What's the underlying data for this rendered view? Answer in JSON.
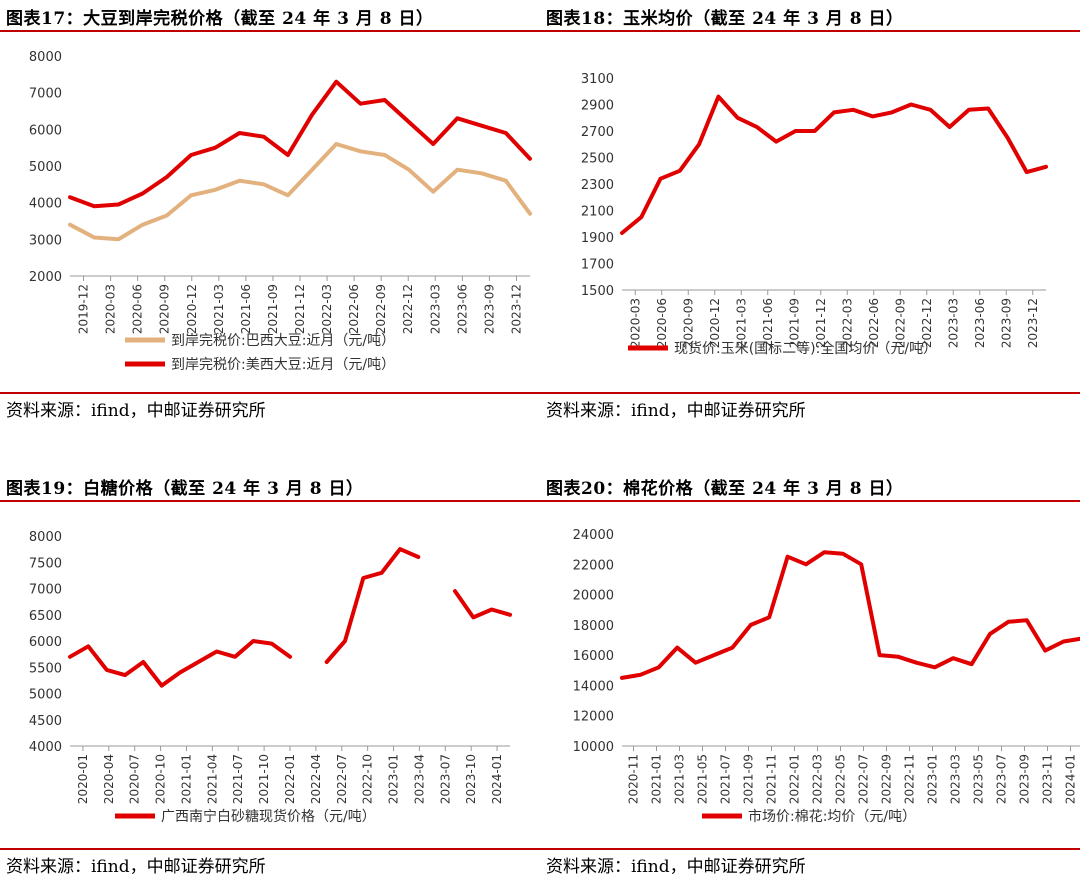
{
  "panels": [
    {
      "title": "图表17：大豆到岸完税价格（截至 24 年 3 月 8 日）",
      "source": "资料来源：ifind，中邮证券研究所",
      "chart_data": {
        "type": "line",
        "yticks": [
          2000,
          3000,
          4000,
          5000,
          6000,
          7000,
          8000
        ],
        "ylim": [
          2000,
          8000
        ],
        "xticks": [
          "2019-12",
          "2020-03",
          "2020-06",
          "2020-09",
          "2020-12",
          "2021-03",
          "2021-06",
          "2021-09",
          "2021-12",
          "2022-03",
          "2022-06",
          "2022-09",
          "2022-12",
          "2023-03",
          "2023-06",
          "2023-09",
          "2023-12"
        ],
        "series": [
          {
            "name": "到岸完税价:巴西大豆:近月（元/吨）",
            "color": "#e3b17d",
            "values": [
              3400,
              3050,
              3000,
              3400,
              3650,
              4200,
              4350,
              4600,
              4500,
              4200,
              4900,
              5600,
              5400,
              5300,
              4900,
              4300,
              4900,
              4800,
              4600,
              3700
            ]
          },
          {
            "name": "到岸完税价:美西大豆:近月（元/吨）",
            "color": "#e00000",
            "values": [
              4150,
              3900,
              3950,
              4250,
              4700,
              5300,
              5500,
              5900,
              5800,
              5300,
              6400,
              7300,
              6700,
              6800,
              6200,
              5600,
              6300,
              6100,
              5900,
              5200
            ]
          }
        ]
      }
    },
    {
      "title": "图表18：玉米均价（截至 24 年 3 月 8 日）",
      "source": "资料来源：ifind，中邮证券研究所",
      "chart_data": {
        "type": "line",
        "yticks": [
          1500,
          1700,
          1900,
          2100,
          2300,
          2500,
          2700,
          2900,
          3100
        ],
        "ylim": [
          1500,
          3100
        ],
        "xticks": [
          "2020-03",
          "2020-06",
          "2020-09",
          "2020-12",
          "2021-03",
          "2021-06",
          "2021-09",
          "2021-12",
          "2022-03",
          "2022-06",
          "2022-09",
          "2022-12",
          "2023-03",
          "2023-06",
          "2023-09",
          "2023-12"
        ],
        "series": [
          {
            "name": "现货价:玉米(国标二等):全国均价（元/吨）",
            "color": "#e00000",
            "values": [
              1930,
              2050,
              2340,
              2400,
              2600,
              2960,
              2800,
              2730,
              2620,
              2700,
              2700,
              2840,
              2860,
              2810,
              2840,
              2900,
              2860,
              2730,
              2860,
              2870,
              2650,
              2390,
              2430
            ]
          }
        ]
      }
    },
    {
      "title": "图表19：白糖价格（截至 24 年 3 月 8 日）",
      "source": "资料来源：ifind，中邮证券研究所",
      "chart_data": {
        "type": "line",
        "yticks": [
          4000,
          4500,
          5000,
          5500,
          6000,
          6500,
          7000,
          7500,
          8000
        ],
        "ylim": [
          4000,
          8000
        ],
        "xticks": [
          "2020-01",
          "2020-04",
          "2020-07",
          "2020-10",
          "2021-01",
          "2021-04",
          "2021-07",
          "2021-10",
          "2022-01",
          "2022-04",
          "2022-07",
          "2022-10",
          "2023-01",
          "2023-04",
          "2023-07",
          "2023-10",
          "2024-01"
        ],
        "series": [
          {
            "name": "广西南宁白砂糖现货价格（元/吨）",
            "color": "#e00000",
            "values": [
              5700,
              5900,
              5450,
              5350,
              5600,
              5150,
              5400,
              5600,
              5800,
              5700,
              6000,
              5950,
              5700,
              null,
              5600,
              6000,
              7200,
              7300,
              7750,
              7600,
              null,
              6950,
              6450,
              6600,
              6500
            ]
          }
        ]
      }
    },
    {
      "title": "图表20：棉花价格（截至 24 年 3 月 8 日）",
      "source": "资料来源：ifind，中邮证券研究所",
      "chart_data": {
        "type": "line",
        "yticks": [
          10000,
          12000,
          14000,
          16000,
          18000,
          20000,
          22000,
          24000
        ],
        "ylim": [
          10000,
          24000
        ],
        "xticks": [
          "2020-11",
          "2021-01",
          "2021-03",
          "2021-05",
          "2021-07",
          "2021-09",
          "2021-11",
          "2022-01",
          "2022-03",
          "2022-05",
          "2022-07",
          "2022-09",
          "2022-11",
          "2023-01",
          "2023-03",
          "2023-05",
          "2023-07",
          "2023-09",
          "2023-11",
          "2024-01"
        ],
        "series": [
          {
            "name": "市场价:棉花:均价（元/吨）",
            "color": "#e00000",
            "values": [
              14500,
              14700,
              15200,
              16500,
              15500,
              16000,
              16500,
              18000,
              18500,
              22500,
              22000,
              22800,
              22700,
              22000,
              16000,
              15900,
              15500,
              15200,
              15800,
              15400,
              17400,
              18200,
              18300,
              16300,
              16900,
              17100
            ]
          }
        ]
      }
    }
  ]
}
